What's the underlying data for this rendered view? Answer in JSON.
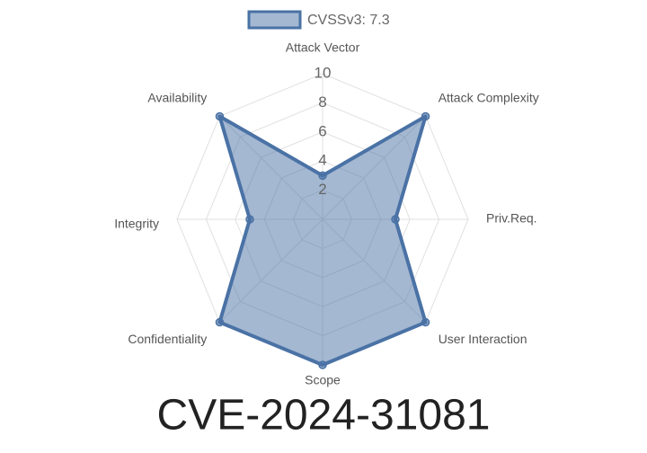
{
  "chart_data": {
    "type": "radar",
    "title": "CVE-2024-31081",
    "categories": [
      "Attack Vector",
      "Attack Complexity",
      "Priv.Req.",
      "User Interaction",
      "Scope",
      "Confidentiality",
      "Integrity",
      "Availability"
    ],
    "series": [
      {
        "name": "CVSSv3: 7.3",
        "color": "#4a72a5",
        "values": [
          3,
          10,
          5,
          10,
          10,
          10,
          5,
          10
        ]
      }
    ],
    "ylim": [
      0,
      10
    ],
    "yticks": [
      2,
      4,
      6,
      8,
      10
    ],
    "grid": true
  }
}
